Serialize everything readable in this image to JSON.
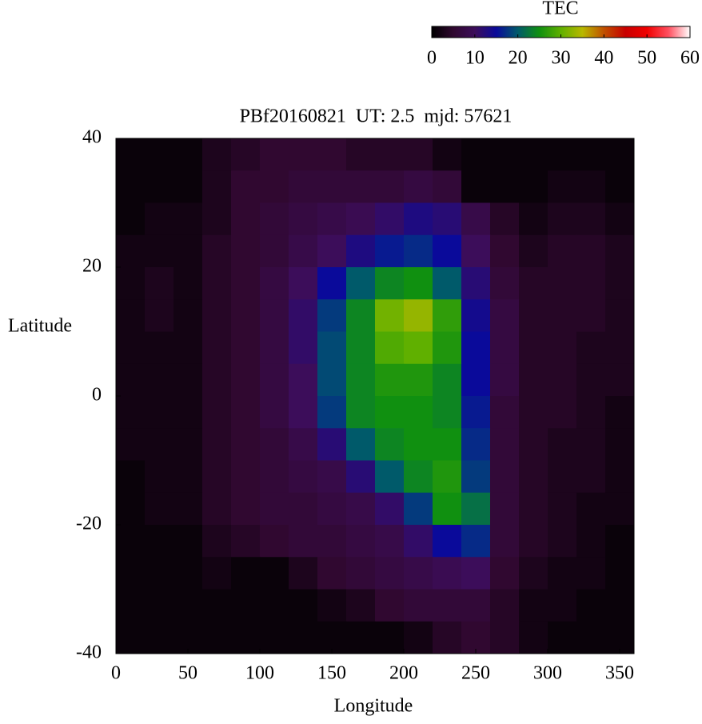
{
  "chart_data": {
    "type": "heatmap",
    "title": "PBf20160821  UT: 2.5  mjd: 57621",
    "xlabel": "Longitude",
    "ylabel": "Latitude",
    "colorbar_label": "TEC",
    "x": [
      10,
      30,
      50,
      70,
      90,
      110,
      130,
      150,
      170,
      190,
      210,
      230,
      250,
      270,
      290,
      310,
      330,
      350
    ],
    "y": [
      37.5,
      32.5,
      27.5,
      22.5,
      17.5,
      12.5,
      7.5,
      2.5,
      -2.5,
      -7.5,
      -12.5,
      -17.5,
      -22.5,
      -27.5,
      -32.5,
      -37.5
    ],
    "values": [
      [
        1,
        1,
        1,
        3,
        4,
        5,
        5,
        5,
        4,
        4,
        4,
        2,
        1,
        1,
        1,
        1,
        1,
        1
      ],
      [
        1,
        1,
        1,
        3,
        5,
        5,
        6,
        6,
        6,
        6,
        7,
        6,
        1,
        1,
        1,
        2,
        2,
        1
      ],
      [
        1,
        2,
        2,
        3,
        5,
        6,
        7,
        8,
        9,
        11,
        13,
        12,
        8,
        4,
        2,
        3,
        3,
        2
      ],
      [
        2,
        2,
        2,
        4,
        5,
        6,
        8,
        10,
        13,
        16,
        17,
        15,
        10,
        5,
        3,
        4,
        4,
        3
      ],
      [
        2,
        3,
        2,
        4,
        5,
        7,
        10,
        15,
        20,
        24,
        25,
        20,
        12,
        6,
        4,
        4,
        4,
        3
      ],
      [
        2,
        3,
        2,
        4,
        5,
        7,
        11,
        18,
        24,
        31,
        33,
        27,
        14,
        7,
        4,
        4,
        4,
        3
      ],
      [
        2,
        2,
        2,
        4,
        5,
        7,
        11,
        19,
        24,
        29,
        30,
        26,
        15,
        7,
        4,
        4,
        3,
        3
      ],
      [
        2,
        2,
        2,
        4,
        5,
        7,
        10,
        19,
        24,
        26,
        26,
        24,
        15,
        7,
        4,
        4,
        3,
        3
      ],
      [
        2,
        2,
        2,
        4,
        5,
        7,
        10,
        18,
        24,
        25,
        25,
        24,
        16,
        6,
        4,
        4,
        3,
        2
      ],
      [
        2,
        2,
        2,
        4,
        5,
        6,
        8,
        12,
        20,
        24,
        25,
        25,
        17,
        6,
        4,
        3,
        3,
        2
      ],
      [
        1,
        2,
        2,
        4,
        5,
        6,
        7,
        8,
        12,
        20,
        24,
        26,
        18,
        6,
        4,
        3,
        3,
        2
      ],
      [
        1,
        2,
        2,
        4,
        5,
        6,
        6,
        7,
        8,
        11,
        18,
        25,
        22,
        6,
        4,
        3,
        2,
        2
      ],
      [
        1,
        1,
        1,
        3,
        4,
        5,
        6,
        6,
        7,
        8,
        11,
        15,
        17,
        6,
        4,
        3,
        2,
        1
      ],
      [
        1,
        1,
        1,
        2,
        1,
        1,
        3,
        5,
        6,
        7,
        8,
        9,
        10,
        5,
        3,
        2,
        2,
        1
      ],
      [
        1,
        1,
        1,
        1,
        1,
        1,
        1,
        2,
        3,
        5,
        6,
        6,
        6,
        4,
        2,
        2,
        1,
        1
      ],
      [
        1,
        1,
        1,
        1,
        1,
        1,
        1,
        1,
        1,
        1,
        2,
        4,
        5,
        4,
        2,
        1,
        1,
        1
      ]
    ],
    "xlim": [
      0,
      360
    ],
    "xticks": [
      0,
      50,
      100,
      150,
      200,
      250,
      300,
      350
    ],
    "ylim": [
      -40,
      40
    ],
    "yticks": [
      -40,
      -20,
      0,
      20,
      40
    ],
    "clim": [
      0,
      60
    ],
    "cticks": [
      0,
      10,
      20,
      30,
      40,
      50,
      60
    ],
    "colorscale": [
      "#000000",
      "#300830",
      "#3c0d5a",
      "#0a0a9a",
      "#005a6a",
      "#109010",
      "#60b000",
      "#b8b800",
      "#c05000",
      "#c80000",
      "#f00000",
      "#ff5060",
      "#ffffff"
    ]
  }
}
